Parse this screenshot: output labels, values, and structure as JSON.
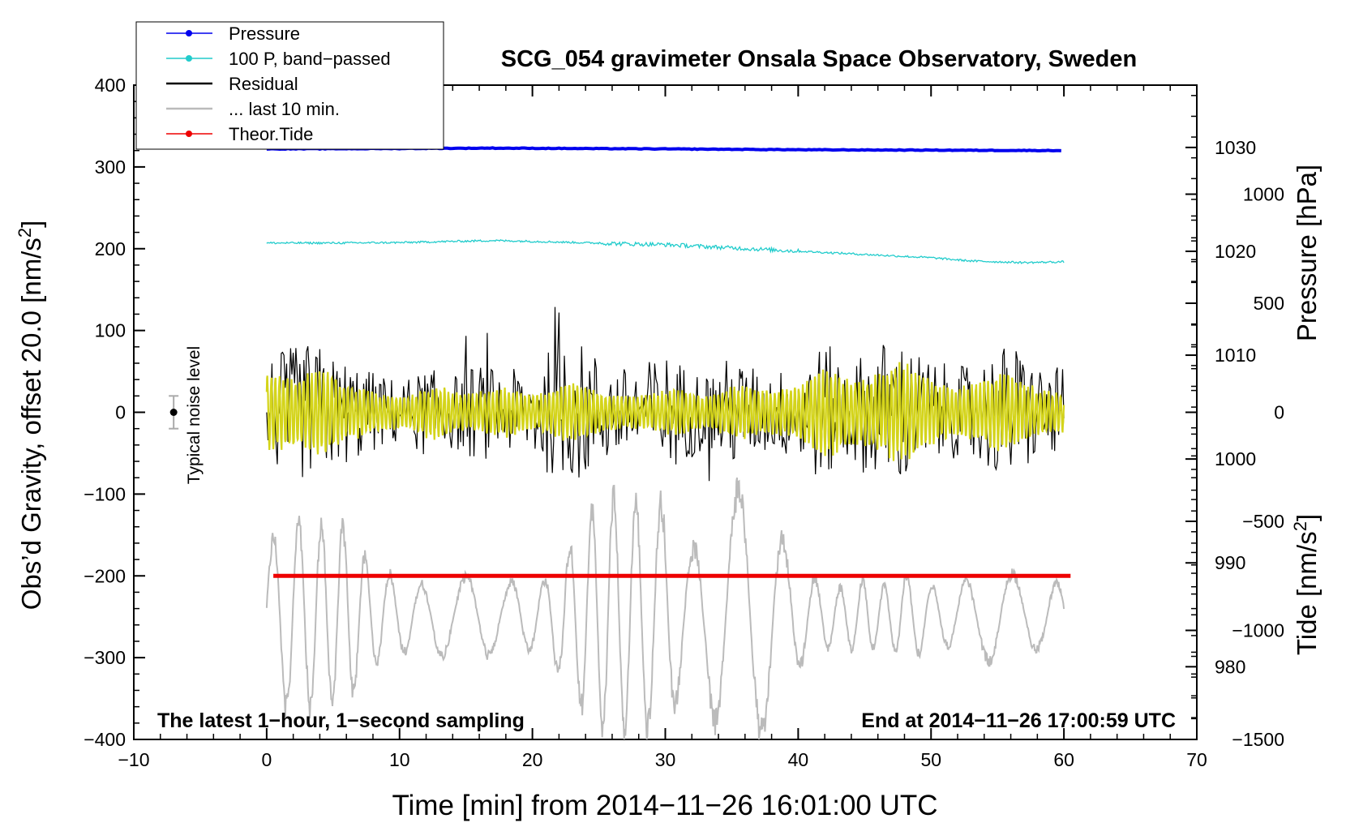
{
  "chart_data": {
    "type": "line",
    "title": "SCG_054 gravimeter Onsala Space Observatory, Sweden",
    "xlabel": "Time [min] from 2014−11−26 16:01:00 UTC",
    "ylabel_left_main": "Obs’d Gravity, offset 20.0 [nm/s",
    "ylabel_left_close": "]",
    "ylabel_right_pressure": "Pressure [hPa]",
    "ylabel_right_tide_main": "Tide [nm/s",
    "ylabel_right_tide_close": "]",
    "superscript": "2",
    "xlim": [
      -10,
      70
    ],
    "ylim": [
      -400,
      400
    ],
    "pressure_axis_range": [
      973,
      1036
    ],
    "tide_axis_range": [
      -1500,
      1500
    ],
    "x_ticks": [
      -10,
      0,
      10,
      20,
      30,
      40,
      50,
      60,
      70
    ],
    "x_tick_labels": [
      "−10",
      "0",
      "10",
      "20",
      "30",
      "40",
      "50",
      "60",
      "70"
    ],
    "y_ticks": [
      -400,
      -300,
      -200,
      -100,
      0,
      100,
      200,
      300,
      400
    ],
    "y_tick_labels": [
      "−400",
      "−300",
      "−200",
      "−100",
      "0",
      "100",
      "200",
      "300",
      "400"
    ],
    "pressure_ticks": [
      980,
      990,
      1000,
      1010,
      1020,
      1030
    ],
    "pressure_tick_labels": [
      "980",
      "990",
      "1000",
      "1010",
      "1020",
      "1030"
    ],
    "tide_ticks": [
      -1500,
      -1000,
      -500,
      0,
      500,
      1000
    ],
    "tide_tick_labels": [
      "−1500",
      "−1000",
      "−500",
      "0",
      "500",
      "1000"
    ],
    "legend": [
      {
        "label": "Pressure",
        "color": "#0000ee",
        "marker": true
      },
      {
        "label": "100 P, band−passed",
        "color": "#22cccc",
        "marker": true
      },
      {
        "label": "Residual",
        "color": "#000000",
        "marker": false
      },
      {
        "label": "... last 10 min.",
        "color": "#bbbbbb",
        "marker": false
      },
      {
        "label": "Theor.Tide",
        "color": "#ee0000",
        "marker": true
      }
    ],
    "legend_position": "top-left",
    "annotations": {
      "noise_label": "Typical noise level",
      "noise_bar": {
        "x": -7,
        "center": 0,
        "halfwidth": 20
      },
      "bottom_left": "The latest 1−hour, 1−second sampling",
      "bottom_right": "End at 2014−11−26 17:00:59 UTC"
    },
    "series": [
      {
        "name": "Pressure",
        "color": "#0000ee",
        "axis": "left",
        "x": [
          0,
          10,
          17,
          30,
          40,
          50,
          60
        ],
        "y": [
          322,
          322.5,
          323,
          322,
          321,
          320.5,
          320
        ]
      },
      {
        "name": "100 P, band−passed",
        "color": "#22cccc",
        "axis": "left",
        "x": [
          0,
          5,
          10,
          17,
          20,
          27,
          30,
          40,
          45,
          50,
          53,
          57,
          60
        ],
        "y": [
          207,
          207,
          207.5,
          210,
          209,
          206,
          205,
          197,
          193,
          189,
          185,
          183,
          184
        ]
      },
      {
        "name": "Theor.Tide",
        "color": "#ee0000",
        "axis": "left",
        "x": [
          0.5,
          60.5
        ],
        "y": [
          -200,
          -200
        ]
      },
      {
        "name": "Residual",
        "color": "#000000",
        "axis": "left",
        "sample_step_min": 0.1,
        "x_range": [
          0,
          60
        ],
        "amplitude_envelope": [
          70,
          75,
          80,
          85,
          82,
          70,
          65,
          60,
          50,
          45,
          40,
          45,
          55,
          50,
          45,
          55,
          60,
          55,
          50,
          55,
          60,
          75,
          80,
          85,
          85,
          70,
          60,
          55,
          60,
          65,
          75,
          65,
          55,
          50,
          60,
          70,
          60,
          55,
          50,
          55,
          70,
          80,
          85,
          75,
          65,
          75,
          85,
          95,
          90,
          75,
          65,
          60,
          55,
          60,
          70,
          80,
          85,
          75,
          60,
          55,
          55
        ]
      },
      {
        "name": "Residual (yellow, band-passed)",
        "color": "#d4d41a",
        "axis": "left",
        "sample_step_min": 0.1,
        "x_range": [
          0,
          60
        ],
        "amplitude_envelope": [
          45,
          42,
          40,
          42,
          48,
          44,
          30,
          28,
          22,
          20,
          18,
          20,
          28,
          30,
          22,
          20,
          22,
          26,
          28,
          24,
          20,
          22,
          30,
          32,
          28,
          22,
          20,
          18,
          18,
          20,
          24,
          26,
          20,
          18,
          22,
          28,
          30,
          26,
          24,
          26,
          30,
          40,
          48,
          45,
          35,
          36,
          42,
          52,
          55,
          45,
          35,
          30,
          28,
          30,
          35,
          42,
          40,
          32,
          28,
          24,
          22
        ]
      },
      {
        "name": "... last 10 min.",
        "color": "#bbbbbb",
        "axis": "left",
        "sample_step_min": 0.1,
        "x_range": [
          0,
          60
        ],
        "baseline": -250,
        "amplitude_envelope": [
          80,
          110,
          115,
          110,
          115,
          105,
          110,
          80,
          60,
          55,
          45,
          40,
          40,
          50,
          45,
          50,
          55,
          45,
          40,
          45,
          40,
          45,
          70,
          90,
          120,
          135,
          145,
          140,
          140,
          135,
          140,
          100,
          80,
          100,
          140,
          150,
          160,
          150,
          130,
          90,
          60,
          50,
          40,
          35,
          40,
          45,
          35,
          40,
          50,
          45,
          40,
          35,
          40,
          45,
          50,
          60,
          55,
          45,
          40,
          40,
          40
        ]
      }
    ]
  }
}
